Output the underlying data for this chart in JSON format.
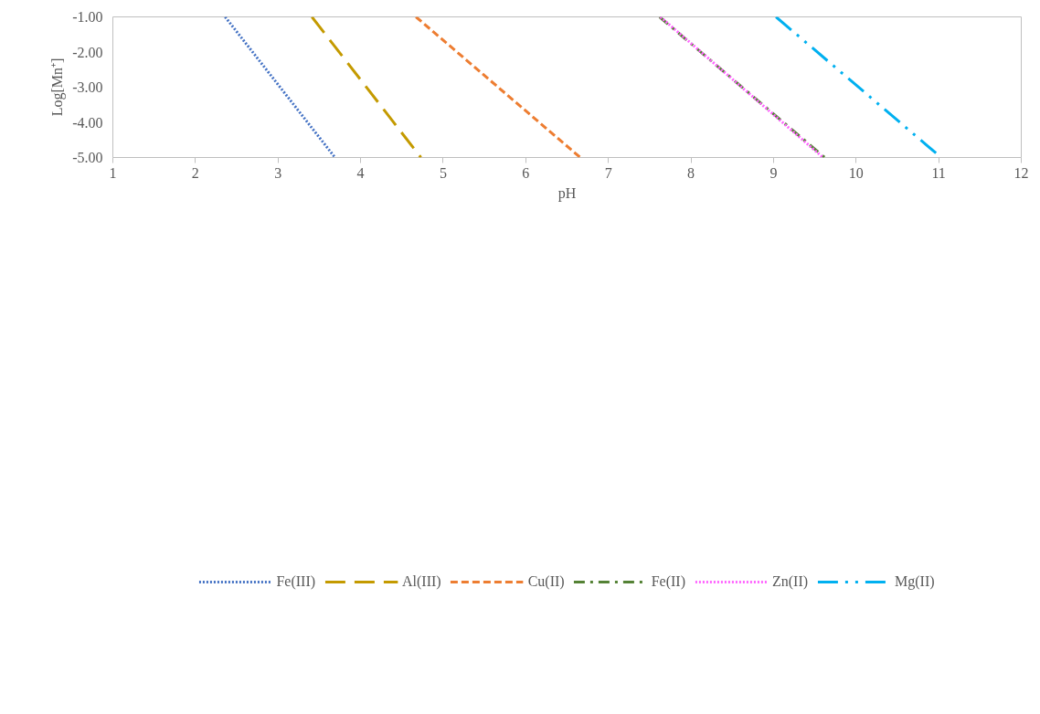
{
  "chart_data": {
    "type": "line",
    "xlabel": "pH",
    "ylabel": "Log[Mn⁺]",
    "xlim": [
      1,
      12
    ],
    "xticks": [
      1,
      2,
      3,
      4,
      5,
      6,
      7,
      8,
      9,
      10,
      11,
      12
    ],
    "ylim": [
      -5,
      -1
    ],
    "yticks": [
      {
        "value": -5,
        "label": "-5.00"
      },
      {
        "value": -4,
        "label": "-4.00"
      },
      {
        "value": -3,
        "label": "-3.00"
      },
      {
        "value": -2,
        "label": "-2.00"
      },
      {
        "value": -1,
        "label": "-1.00"
      }
    ],
    "grid": false,
    "legend": "bottom",
    "series": [
      {
        "name": "Fe(III)",
        "color": "#4472c4",
        "line_style": "dotted",
        "x": [
          2.36,
          3.69
        ],
        "values": [
          -1,
          -5
        ]
      },
      {
        "name": "Al(III)",
        "color": "#c49a00",
        "line_style": "longdash",
        "x": [
          3.41,
          4.73
        ],
        "values": [
          -1,
          -5
        ]
      },
      {
        "name": "Cu(II)",
        "color": "#ed7d31",
        "line_style": "dashed",
        "x": [
          4.67,
          6.66
        ],
        "values": [
          -1,
          -5
        ]
      },
      {
        "name": "Fe(II)",
        "color": "#548235",
        "line_style": "dashdot",
        "x": [
          7.62,
          9.62
        ],
        "values": [
          -1,
          -5
        ]
      },
      {
        "name": "Zn(II)",
        "color": "#ff66ff",
        "line_style": "dotted",
        "x": [
          7.63,
          9.6
        ],
        "values": [
          -1,
          -5
        ]
      },
      {
        "name": "Mg(II)",
        "color": "#00b0f0",
        "line_style": "dashdotdot",
        "x": [
          9.03,
          11.03
        ],
        "values": [
          -1,
          -5
        ]
      }
    ]
  }
}
